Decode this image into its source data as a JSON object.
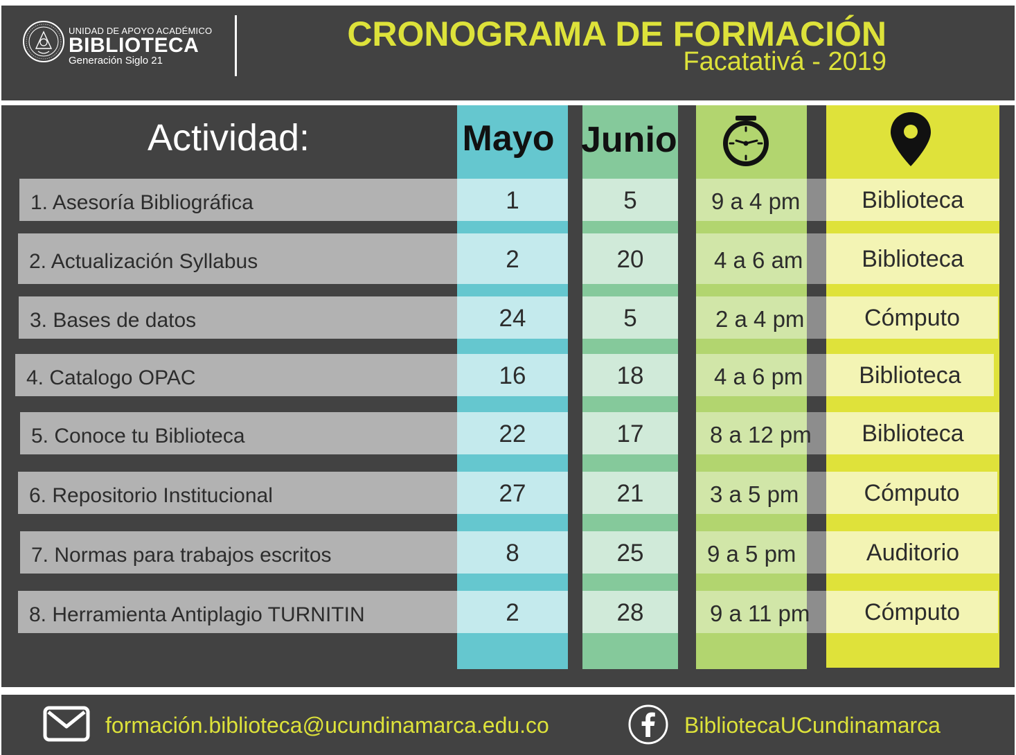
{
  "header": {
    "logo": {
      "top_line": "UNIDAD DE APOYO ACADÉMICO",
      "name": "BIBLIOTECA",
      "tagline": "Generación Siglo 21",
      "seal_text": "UNIVERSIDAD DE CUNDINAMARCA"
    },
    "title": "CRONOGRAMA DE FORMACIÓN",
    "subtitle": "Facatativá  - 2019"
  },
  "colors": {
    "background": "#424242",
    "accent_yellow": "#dde23a",
    "mayo_column": "#65c7cf",
    "junio_column": "#85c99b",
    "hora_column": "#b2d56f",
    "lugar_column": "#dfe23a"
  },
  "table": {
    "headers": {
      "actividad": "Actividad:",
      "mayo": "Mayo",
      "junio": "Junio",
      "hora_icon": "clock-icon",
      "lugar_icon": "location-pin-icon"
    },
    "rows": [
      {
        "actividad": "1. Asesoría Bibliográfica",
        "mayo": "1",
        "junio": "5",
        "hora": "9 a 4 pm",
        "lugar": "Biblioteca"
      },
      {
        "actividad": "2. Actualización Syllabus",
        "mayo": "2",
        "junio": "20",
        "hora": "4 a 6  am",
        "lugar": "Biblioteca"
      },
      {
        "actividad": "3. Bases de datos",
        "mayo": "24",
        "junio": "5",
        "hora": "2 a 4  pm",
        "lugar": "Cómputo"
      },
      {
        "actividad": "4. Catalogo OPAC",
        "mayo": "16",
        "junio": "18",
        "hora": "4  a 6  pm",
        "lugar": "Biblioteca"
      },
      {
        "actividad": "5. Conoce tu Biblioteca",
        "mayo": "22",
        "junio": "17",
        "hora": "8 a 12 pm",
        "lugar": "Biblioteca"
      },
      {
        "actividad": "6. Repositorio Institucional",
        "mayo": "27",
        "junio": "21",
        "hora": "3 a 5 pm",
        "lugar": "Cómputo"
      },
      {
        "actividad": "7. Normas para trabajos escritos",
        "mayo": "8",
        "junio": "25",
        "hora": "9 a 5 pm",
        "lugar": "Auditorio"
      },
      {
        "actividad": "8. Herramienta Antiplagio TURNITIN",
        "mayo": "2",
        "junio": "28",
        "hora": "9 a 11 pm",
        "lugar": "Cómputo"
      }
    ]
  },
  "footer": {
    "email": "formación.biblioteca@ucundinamarca.edu.co",
    "facebook": "BibliotecaUCundinamarca",
    "mail_icon": "mail-icon",
    "facebook_icon": "facebook-icon"
  }
}
